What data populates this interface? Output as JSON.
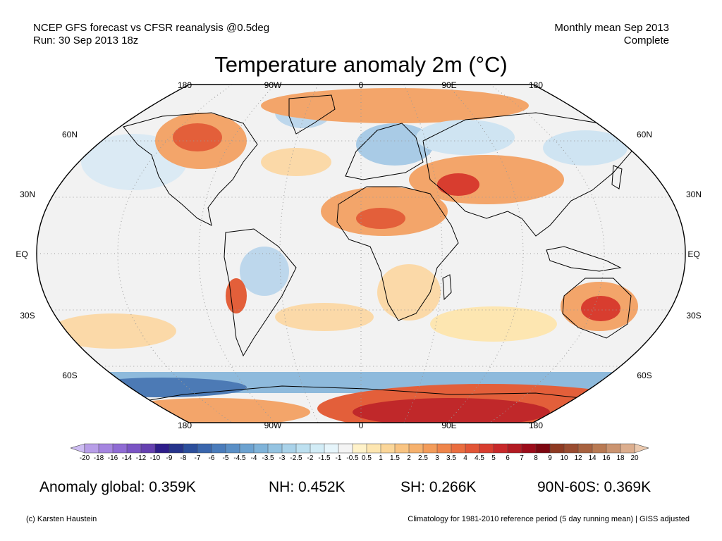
{
  "header": {
    "line1_left": "NCEP GFS forecast vs CFSR reanalysis @0.5deg",
    "line2_left": "Run: 30 Sep 2013 18z",
    "line1_right": "Monthly mean Sep 2013",
    "line2_right": "Complete"
  },
  "title": "Temperature anomaly 2m (°C)",
  "map": {
    "projection": "Robinson",
    "lon_labels_top": [
      "180",
      "90W",
      "0",
      "90E",
      "180"
    ],
    "lon_labels_bottom": [
      "180",
      "90W",
      "0",
      "90E",
      "180"
    ],
    "lat_labels_left": [
      "60N",
      "30N",
      "EQ",
      "30S",
      "60S"
    ],
    "lat_labels_right": [
      "60N",
      "30N",
      "EQ",
      "30S",
      "60S"
    ],
    "colors": {
      "ocean_neutral": "#f2f2f2",
      "warm_light": "#fbd9a8",
      "warm_mid": "#f3a56a",
      "warm_strong": "#e35f3a",
      "warm_extreme": "#c0282a",
      "cold_light": "#cfe4f2",
      "cold_mid": "#8ebadc",
      "cold_strong": "#4c7ab5"
    }
  },
  "colorbar": {
    "tick_labels": [
      "-20",
      "-18",
      "-16",
      "-14",
      "-12",
      "-10",
      "-9",
      "-8",
      "-7",
      "-6",
      "-5",
      "-4.5",
      "-4",
      "-3.5",
      "-3",
      "-2.5",
      "-2",
      "-1.5",
      "-1",
      "-0.5",
      "0.5",
      "1",
      "1.5",
      "2",
      "2.5",
      "3",
      "3.5",
      "4",
      "4.5",
      "5",
      "6",
      "7",
      "8",
      "9",
      "10",
      "12",
      "14",
      "16",
      "18",
      "20"
    ],
    "colors": [
      "#cdbcf2",
      "#b89ee8",
      "#a585e0",
      "#8f6bd4",
      "#7a54c4",
      "#6540b0",
      "#2e1d8a",
      "#26348c",
      "#2c4f9c",
      "#3a66ad",
      "#4a7cbb",
      "#5a8fc6",
      "#6ca2d0",
      "#7fb3d9",
      "#94c3e1",
      "#a9d2e9",
      "#bde0f0",
      "#d2ecf6",
      "#e6f5fb",
      "#f4f4f4",
      "#fff2c9",
      "#fde6b1",
      "#fbd699",
      "#f9c482",
      "#f6b16d",
      "#f39c5a",
      "#ef854b",
      "#ea6d3f",
      "#e25536",
      "#d83d2f",
      "#c8282a",
      "#b31a22",
      "#9c0c1a",
      "#7d0710",
      "#8e3a22",
      "#9a4c30",
      "#a8623f",
      "#b97a53",
      "#cb9470",
      "#dcae8e",
      "#ebc9ae"
    ]
  },
  "stats": {
    "global": "Anomaly global: 0.359K",
    "nh": "NH: 0.452K",
    "sh": "SH: 0.266K",
    "band_90n_60s": "90N-60S: 0.369K"
  },
  "footer": {
    "left": "(c) Karsten Haustein",
    "right": "Climatology for 1981-2010 reference period (5 day running mean) | GISS adjusted"
  }
}
